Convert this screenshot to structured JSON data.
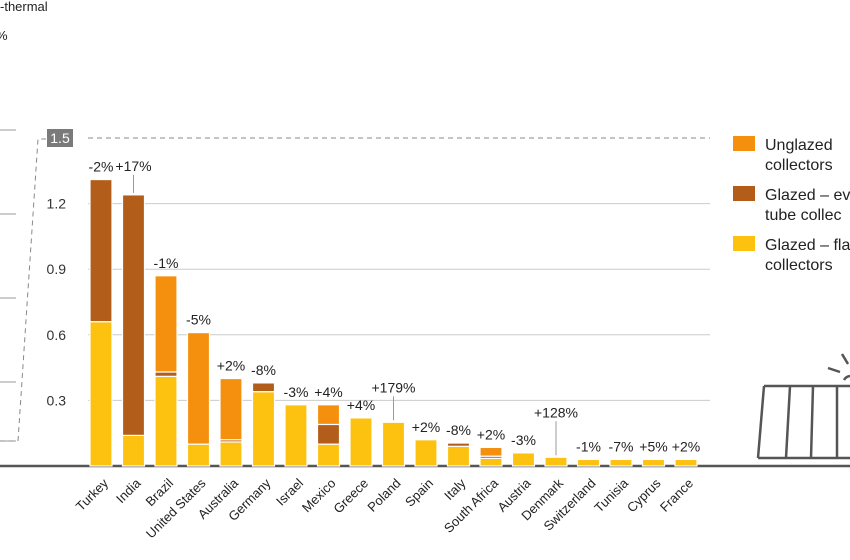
{
  "chart_data": {
    "type": "bar",
    "stacked": true,
    "ylabel": "-thermal",
    "ylabel_unit": "%",
    "ylim": [
      0,
      1.5
    ],
    "yticks": [
      0.3,
      0.6,
      0.9,
      1.2,
      1.5
    ],
    "highlighted_tick": "1.5",
    "categories": [
      "Turkey",
      "India",
      "Brazil",
      "United States",
      "Australia",
      "Germany",
      "Israel",
      "Mexico",
      "Greece",
      "Poland",
      "Spain",
      "Italy",
      "South Africa",
      "Austria",
      "Denmark",
      "Switzerland",
      "Tunisia",
      "Cyprus",
      "France"
    ],
    "changes": [
      "-2%",
      "+17%",
      "-1%",
      "-5%",
      "+2%",
      "-8%",
      "-3%",
      "+4%",
      "+4%",
      "+179%",
      "+2%",
      "-8%",
      "+2%",
      "-3%",
      "+128%",
      "-1%",
      "-7%",
      "+5%",
      "+2%"
    ],
    "series": [
      {
        "name": "Glazed – flat plate collectors",
        "color": "#FDC10F",
        "values": [
          0.66,
          0.14,
          0.41,
          0.1,
          0.11,
          0.34,
          0.28,
          0.1,
          0.22,
          0.2,
          0.12,
          0.09,
          0.035,
          0.06,
          0.04,
          0.03,
          0.03,
          0.03,
          0.03
        ]
      },
      {
        "name": "Glazed – evacuated tube collectors",
        "color": "#B25E1A",
        "values": [
          0.65,
          1.1,
          0.02,
          0.0,
          0.01,
          0.04,
          0.0,
          0.09,
          0.0,
          0.0,
          0.0,
          0.015,
          0.01,
          0.0,
          0.0,
          0.0,
          0.0,
          0.0,
          0.0
        ]
      },
      {
        "name": "Unglazed collectors",
        "color": "#F5900E",
        "values": [
          0.0,
          0.0,
          0.44,
          0.51,
          0.28,
          0.0,
          0.0,
          0.09,
          0.0,
          0.0,
          0.0,
          0.0,
          0.04,
          0.0,
          0.0,
          0.0,
          0.0,
          0.0,
          0.0
        ]
      }
    ],
    "legend": {
      "placement": "right",
      "entries": [
        {
          "label_line1": "Unglazed",
          "label_line2": "collectors",
          "color": "#F5900E"
        },
        {
          "label_line1": "Glazed – ev",
          "label_line2": "tube collec",
          "color": "#B25E1A"
        },
        {
          "label_line1": "Glazed – fla",
          "label_line2": "collectors",
          "color": "#FDC10F"
        }
      ]
    },
    "grid": true,
    "colors": {
      "grid": "#cccccc",
      "axis": "#555555",
      "dashed": "#888888",
      "tick_badge": "#7a7a7a"
    }
  }
}
